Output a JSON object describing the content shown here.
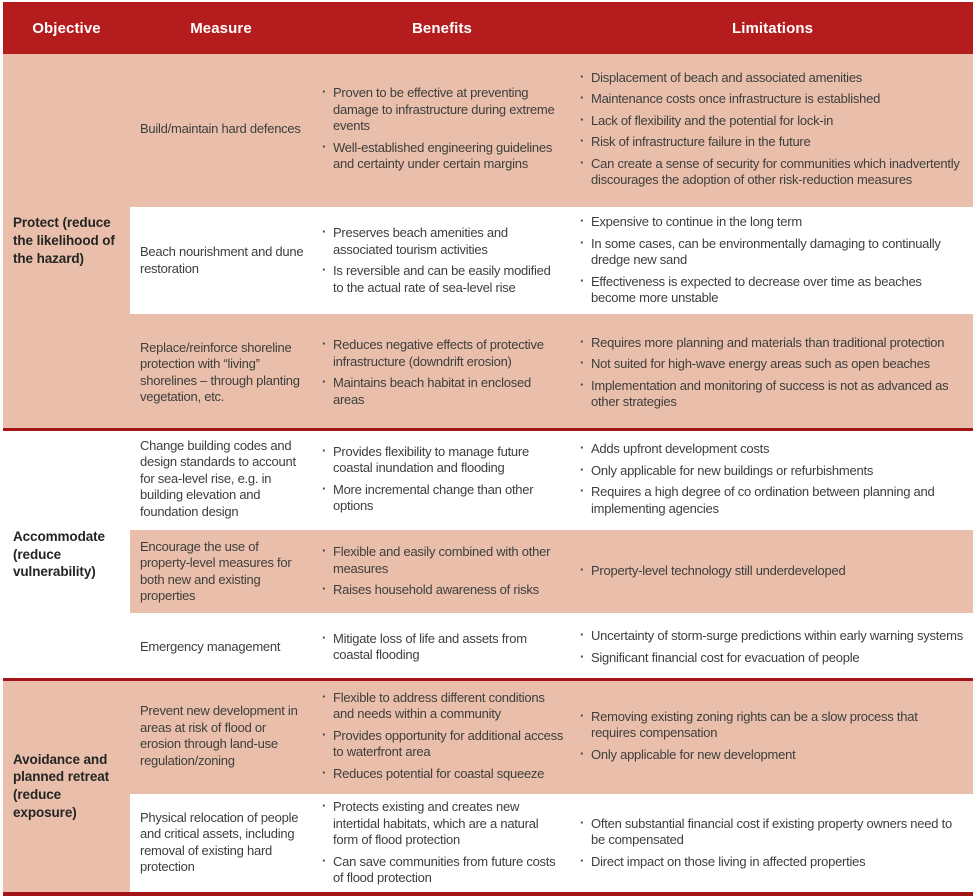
{
  "table": {
    "bullet_glyph": "·",
    "headers": [
      "Objective",
      "Measure",
      "Benefits",
      "Limitations"
    ],
    "colors": {
      "header_bg": "#b41c1e",
      "salmon": "#e9bfab",
      "divider": "#a31417",
      "text": "#3e3e3c",
      "header_text": "#ffffff"
    },
    "groups": [
      {
        "objective": "Protect (reduce the likelihood of the hazard)",
        "rows": [
          {
            "measure": "Build/maintain hard defences",
            "benefits": [
              "Proven to be effective at preventing damage to infrastructure during extreme events",
              "Well-established engineering guidelines and certainty under certain margins"
            ],
            "limitations": [
              "Displacement of beach and associated amenities",
              "Maintenance costs once infrastructure is established",
              "Lack of flexibility and the potential for lock-in",
              "Risk of infrastructure failure in the future",
              "Can create a sense of security for communities which inadvertently discourages the adoption of other risk-reduction measures"
            ]
          },
          {
            "measure": "Beach nourishment and dune restoration",
            "benefits": [
              "Preserves beach amenities and associated tourism activities",
              "Is reversible and can be easily modified to the actual rate of sea-level rise"
            ],
            "limitations": [
              "Expensive to continue in the long term",
              "In some cases, can be environmentally damaging to continually dredge new sand",
              "Effectiveness is expected to decrease over time as beaches become more unstable"
            ]
          },
          {
            "measure": "Replace/reinforce shoreline protection with “living” shorelines – through planting vegetation, etc.",
            "benefits": [
              "Reduces negative effects of protective infrastructure (downdrift erosion)",
              "Maintains beach habitat in enclosed areas"
            ],
            "limitations": [
              "Requires more planning and materials than traditional protection",
              "Not suited for high-wave energy areas such as open beaches",
              "Implementation and monitoring of success is not as advanced as other strategies"
            ]
          }
        ]
      },
      {
        "objective": "Accommodate (reduce vulnerability)",
        "rows": [
          {
            "measure": "Change building codes and design standards to account for sea-level rise, e.g. in building elevation and foundation design",
            "benefits": [
              "Provides flexibility to manage future coastal inundation and flooding",
              "More incremental change than other options"
            ],
            "limitations": [
              "Adds upfront development costs",
              "Only applicable for new buildings or refurbishments",
              "Requires a high degree of co ordination between planning and implementing agencies"
            ]
          },
          {
            "measure": "Encourage the use of property-level measures for both new and existing properties",
            "benefits": [
              "Flexible and easily combined with other measures",
              "Raises household awareness of risks"
            ],
            "limitations": [
              "Property-level technology still underdeveloped"
            ]
          },
          {
            "measure": "Emergency management",
            "benefits": [
              "Mitigate loss of life and assets from coastal flooding"
            ],
            "limitations": [
              "Uncertainty of storm-surge predictions within early warning systems",
              "Significant financial cost for evacuation of people"
            ]
          }
        ]
      },
      {
        "objective": "Avoidance and planned retreat (reduce exposure)",
        "rows": [
          {
            "measure": "Prevent new development in areas at risk of flood or erosion through land-use regulation/zoning",
            "benefits": [
              "Flexible to address different conditions and needs within a community",
              "Provides opportunity for additional access to waterfront area",
              "Reduces potential for coastal squeeze"
            ],
            "limitations": [
              "Removing existing zoning rights can be a slow process that requires compensation",
              "Only applicable for new development"
            ]
          },
          {
            "measure": "Physical relocation of people and critical assets, including removal of existing hard protection",
            "benefits": [
              "Protects existing and creates new intertidal habitats, which are a natural form of flood protection",
              "Can save communities from future costs of flood protection"
            ],
            "limitations": [
              "Often substantial financial cost if existing property owners need to be compensated",
              "Direct impact on those living in affected properties"
            ]
          }
        ]
      }
    ]
  }
}
